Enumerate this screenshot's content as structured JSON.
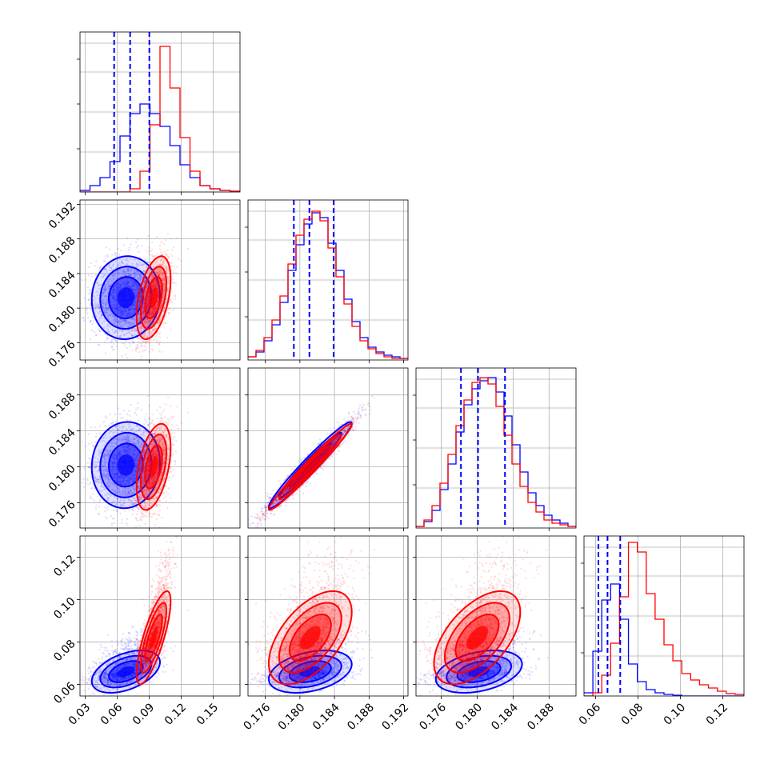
{
  "chart_data": {
    "type": "corner",
    "title": "",
    "parameters": [
      "",
      "",
      "",
      ""
    ],
    "series": [
      {
        "name": "",
        "color": "#0000ff"
      },
      {
        "name": "",
        "color": "#ff0000"
      }
    ],
    "quantile_lines": {
      "color": "#0000ff",
      "style": "dashed",
      "p1": [
        0.057,
        0.072,
        0.09
      ],
      "p2": [
        0.1793,
        0.1811,
        0.1839
      ],
      "p3": [
        0.1782,
        0.1801,
        0.1831
      ],
      "p4": [
        0.0613,
        0.0656,
        0.0716
      ]
    },
    "axes": {
      "p1": {
        "range": [
          0.025,
          0.175
        ],
        "ticks": [
          "0.03",
          "0.06",
          "0.09",
          "0.12",
          "0.15"
        ],
        "tick_values": [
          0.03,
          0.06,
          0.09,
          0.12,
          0.15
        ]
      },
      "p2": {
        "range": [
          0.174,
          0.1925
        ],
        "ticks": [
          "0.176",
          "0.180",
          "0.184",
          "0.188",
          "0.192"
        ],
        "tick_values": [
          0.176,
          0.18,
          0.184,
          0.188,
          0.192
        ]
      },
      "p3": {
        "range": [
          0.1732,
          0.191
        ],
        "ticks": [
          "0.176",
          "0.180",
          "0.184",
          "0.188"
        ],
        "tick_values": [
          0.176,
          0.18,
          0.184,
          0.188
        ]
      },
      "p4": {
        "range": [
          0.0545,
          0.13
        ],
        "ticks": [
          "0.06",
          "0.08",
          "0.10",
          "0.12"
        ],
        "tick_values": [
          0.06,
          0.08,
          0.1,
          0.12
        ]
      }
    },
    "grid": true,
    "histograms": {
      "p1": {
        "blue": [
          0.01,
          0.04,
          0.09,
          0.19,
          0.35,
          0.49,
          0.55,
          0.49,
          0.41,
          0.29,
          0.17,
          0.09,
          0.04,
          0.02,
          0.01,
          0.005
        ],
        "red": [
          0.0,
          0.0,
          0.0,
          0.0,
          0.0,
          0.02,
          0.13,
          0.42,
          0.91,
          0.65,
          0.34,
          0.13,
          0.04,
          0.02,
          0.01,
          0.005
        ]
      },
      "p2": {
        "blue": [
          0.02,
          0.05,
          0.12,
          0.22,
          0.36,
          0.56,
          0.72,
          0.85,
          0.92,
          0.89,
          0.73,
          0.56,
          0.38,
          0.24,
          0.14,
          0.08,
          0.05,
          0.03,
          0.02,
          0.01
        ],
        "red": [
          0.02,
          0.06,
          0.14,
          0.25,
          0.4,
          0.6,
          0.78,
          0.88,
          0.93,
          0.87,
          0.7,
          0.52,
          0.35,
          0.21,
          0.12,
          0.07,
          0.04,
          0.02,
          0.01,
          0.01
        ]
      },
      "p3": {
        "blue": [
          0.01,
          0.04,
          0.11,
          0.24,
          0.4,
          0.6,
          0.77,
          0.87,
          0.92,
          0.94,
          0.85,
          0.7,
          0.52,
          0.35,
          0.22,
          0.14,
          0.08,
          0.05,
          0.03,
          0.01
        ],
        "red": [
          0.01,
          0.05,
          0.14,
          0.28,
          0.46,
          0.64,
          0.8,
          0.91,
          0.94,
          0.9,
          0.76,
          0.58,
          0.4,
          0.26,
          0.16,
          0.1,
          0.05,
          0.03,
          0.02,
          0.01
        ]
      },
      "p4": {
        "blue": [
          0.02,
          0.28,
          0.6,
          0.7,
          0.48,
          0.2,
          0.09,
          0.04,
          0.02,
          0.01,
          0.005,
          0.0,
          0.0,
          0.0,
          0.0,
          0.0,
          0.0,
          0.0
        ],
        "red": [
          0.0,
          0.02,
          0.13,
          0.33,
          0.62,
          0.96,
          0.9,
          0.64,
          0.48,
          0.32,
          0.22,
          0.14,
          0.1,
          0.07,
          0.05,
          0.03,
          0.015,
          0.01
        ]
      }
    },
    "posteriors": {
      "blue": {
        "mean": [
          0.068,
          0.1812,
          0.1802,
          0.066
        ],
        "sd": [
          0.016,
          0.0024,
          0.0024,
          0.005
        ],
        "corr": [
          [
            1,
            0.05,
            0.05,
            0.45
          ],
          [
            0.05,
            1,
            0.97,
            0.35
          ],
          [
            0.05,
            0.97,
            1,
            0.35
          ],
          [
            0.45,
            0.35,
            0.35,
            1
          ]
        ]
      },
      "red": {
        "mean": [
          0.094,
          0.1812,
          0.18,
          0.082
        ],
        "sd": [
          0.008,
          0.0024,
          0.0024,
          0.011
        ],
        "corr": [
          [
            1,
            0.45,
            0.45,
            0.78
          ],
          [
            0.45,
            1,
            0.98,
            0.55
          ],
          [
            0.45,
            0.98,
            1,
            0.55
          ],
          [
            0.78,
            0.55,
            0.55,
            1
          ]
        ]
      }
    }
  }
}
